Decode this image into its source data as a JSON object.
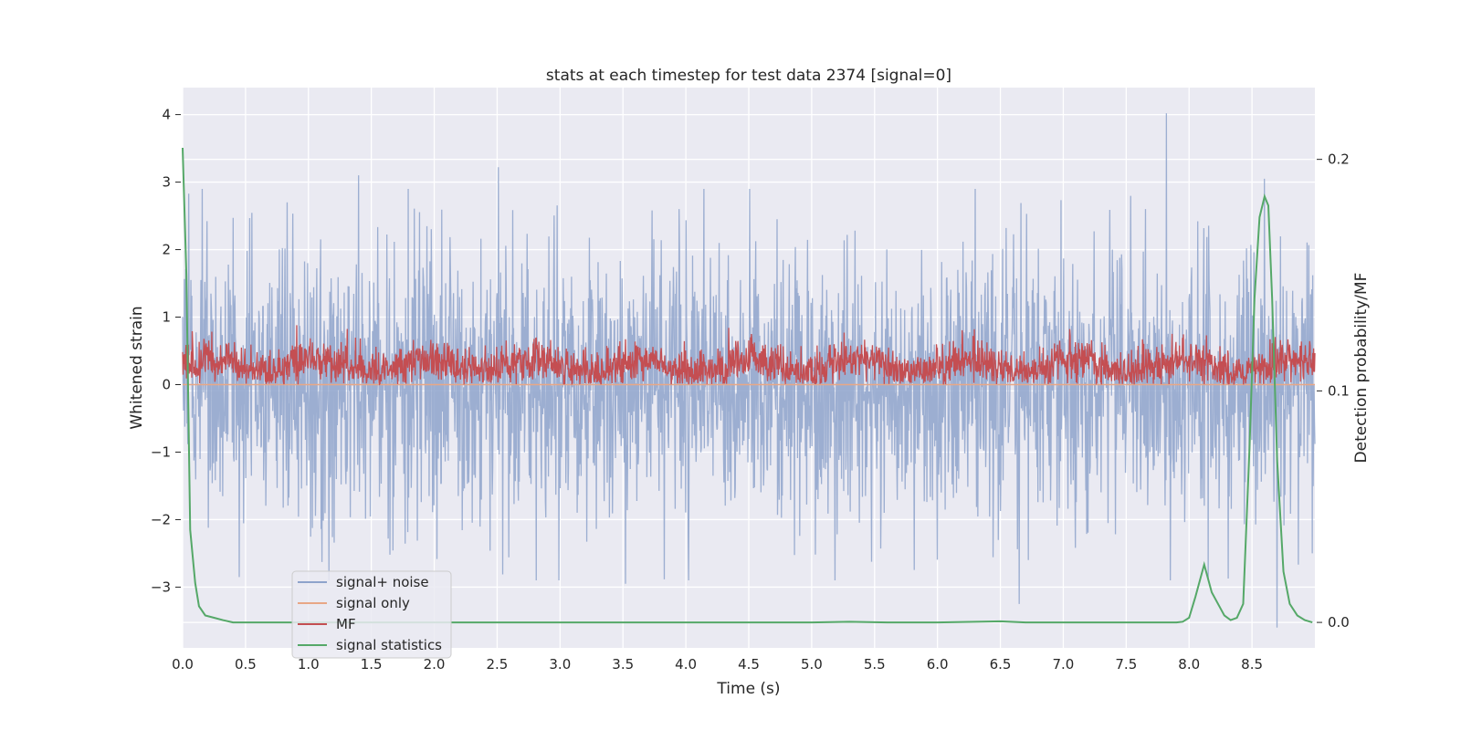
{
  "chart_data": {
    "type": "line",
    "title": "stats at each timestep for test data 2374 [signal=0]",
    "xlabel": "Time (s)",
    "ylabel": "Whitened strain",
    "y2label": "Detection probability/MF",
    "xlim": [
      0.0,
      9.0
    ],
    "ylim": [
      -3.9,
      4.4
    ],
    "y2lim": [
      -0.011,
      0.231
    ],
    "xticks": [
      "0.0",
      "0.5",
      "1.0",
      "1.5",
      "2.0",
      "2.5",
      "3.0",
      "3.5",
      "4.0",
      "4.5",
      "5.0",
      "5.5",
      "6.0",
      "6.5",
      "7.0",
      "7.5",
      "8.0",
      "8.5"
    ],
    "yticks": [
      "4",
      "3",
      "2",
      "1",
      "0",
      "−1",
      "−2",
      "−3"
    ],
    "y2ticks": [
      "0.2",
      "0.1",
      "0.0"
    ],
    "grid": true,
    "legend_position": "lower-left",
    "legend": [
      "signal+ noise",
      "signal only",
      "MF",
      "signal statistics"
    ],
    "series": [
      {
        "name": "signal+ noise",
        "color": "#8ea3cb",
        "kind": "noise",
        "sigma": 0.9,
        "seed": 2374,
        "spikes": [
          [
            7.82,
            4.02
          ],
          [
            2.51,
            3.22
          ],
          [
            8.6,
            3.05
          ],
          [
            1.4,
            3.1
          ],
          [
            6.65,
            -3.25
          ],
          [
            8.7,
            -3.6
          ],
          [
            3.52,
            -2.95
          ],
          [
            2.99,
            -2.9
          ],
          [
            0.45,
            -2.85
          ],
          [
            8.98,
            -2.5
          ]
        ]
      },
      {
        "name": "signal only",
        "color": "#e8a786",
        "kind": "constant",
        "value": 0.0
      },
      {
        "name": "MF",
        "color": "#c44e52",
        "kind": "mf",
        "base": 0.28,
        "spread": 0.16,
        "max": 0.95,
        "seed": 77
      },
      {
        "name": "signal statistics",
        "color": "#55a868",
        "kind": "line",
        "x": [
          0.0,
          0.03,
          0.06,
          0.1,
          0.13,
          0.18,
          0.25,
          0.32,
          0.4,
          0.5,
          0.7,
          1.0,
          2.0,
          3.0,
          4.0,
          5.0,
          5.3,
          5.6,
          6.0,
          6.3,
          6.5,
          6.7,
          7.0,
          7.5,
          7.9,
          7.95,
          8.0,
          8.05,
          8.12,
          8.18,
          8.24,
          8.28,
          8.33,
          8.38,
          8.43,
          8.48,
          8.52,
          8.56,
          8.6,
          8.63,
          8.66,
          8.7,
          8.75,
          8.8,
          8.86,
          8.92,
          8.98
        ],
        "y": [
          0.205,
          0.15,
          0.04,
          0.017,
          0.007,
          0.003,
          0.002,
          0.001,
          0.0,
          0.0,
          0.0,
          0.0,
          0.0,
          0.0,
          0.0,
          0.0,
          0.0003,
          0.0,
          0.0,
          0.0003,
          0.0005,
          0.0,
          0.0,
          0.0,
          0.0,
          0.0003,
          0.002,
          0.011,
          0.025,
          0.013,
          0.007,
          0.003,
          0.001,
          0.002,
          0.008,
          0.075,
          0.14,
          0.175,
          0.184,
          0.18,
          0.14,
          0.07,
          0.022,
          0.008,
          0.003,
          0.001,
          0.0
        ]
      }
    ]
  }
}
